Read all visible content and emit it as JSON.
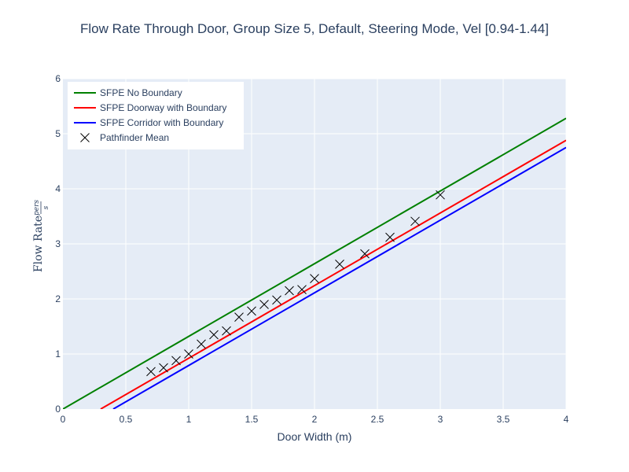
{
  "chart_data": {
    "type": "line",
    "title": "Flow Rate Through Door, Group Size 5, Default, Steering Mode, Vel [0.94-1.44]",
    "xlabel": "Door Width (m)",
    "ylabel": "Flow Rate",
    "ylabel_fraction_num": "pers",
    "ylabel_fraction_den": "s",
    "xlim": [
      0,
      4
    ],
    "ylim": [
      0,
      6
    ],
    "x_ticks": [
      0,
      0.5,
      1,
      1.5,
      2,
      2.5,
      3,
      3.5,
      4
    ],
    "x_tick_labels": [
      "0",
      "0.5",
      "1",
      "1.5",
      "2",
      "2.5",
      "3",
      "3.5",
      "4"
    ],
    "y_ticks": [
      0,
      1,
      2,
      3,
      4,
      5,
      6
    ],
    "y_tick_labels": [
      "0",
      "1",
      "2",
      "3",
      "4",
      "5",
      "6"
    ],
    "grid": true,
    "legend_position": "top-left",
    "series": [
      {
        "name": "SFPE No Boundary",
        "kind": "line",
        "color": "#008000",
        "x": [
          0,
          4
        ],
        "y": [
          0,
          5.28
        ]
      },
      {
        "name": "SFPE Doorway with Boundary",
        "kind": "line",
        "color": "#ff0000",
        "x": [
          0.3,
          4
        ],
        "y": [
          0,
          4.88
        ]
      },
      {
        "name": "SFPE Corridor with Boundary",
        "kind": "line",
        "color": "#0000ff",
        "x": [
          0.4,
          4
        ],
        "y": [
          0,
          4.75
        ]
      },
      {
        "name": "Pathfinder Mean",
        "kind": "markers",
        "marker": "x",
        "color": "#000000",
        "x": [
          0.7,
          0.8,
          0.9,
          1.0,
          1.1,
          1.2,
          1.3,
          1.4,
          1.5,
          1.6,
          1.7,
          1.8,
          1.9,
          2.0,
          2.2,
          2.4,
          2.6,
          2.8,
          3.0
        ],
        "y": [
          0.68,
          0.75,
          0.88,
          1.0,
          1.18,
          1.35,
          1.42,
          1.67,
          1.78,
          1.9,
          1.98,
          2.15,
          2.17,
          2.37,
          2.63,
          2.82,
          3.12,
          3.41,
          3.89
        ]
      }
    ]
  },
  "colors": {
    "plot_background": "#e5ecf6",
    "grid": "#ffffff",
    "text": "#2a3f5f"
  }
}
